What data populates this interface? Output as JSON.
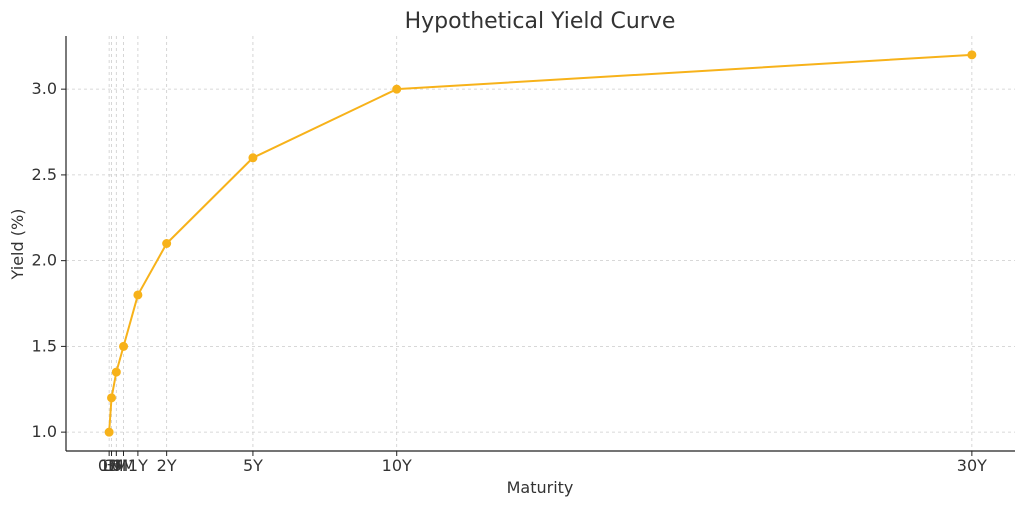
{
  "chart_data": {
    "type": "line",
    "title": "Hypothetical Yield Curve",
    "xlabel": "Maturity",
    "ylabel": "Yield (%)",
    "grid": true,
    "color": "#f7b21a",
    "x": [
      0,
      0.083,
      0.25,
      0.5,
      1,
      2,
      5,
      10,
      30
    ],
    "x_tick_labels": [
      "0D",
      "1M",
      "3M",
      "6M",
      "1Y",
      "2Y",
      "5Y",
      "10Y",
      "30Y"
    ],
    "series": [
      {
        "values": [
          1.0,
          1.2,
          1.35,
          1.5,
          1.8,
          2.1,
          2.6,
          3.0,
          3.2
        ]
      }
    ],
    "y_ticks": [
      1.0,
      1.5,
      2.0,
      2.5,
      3.0
    ],
    "y_tick_labels": [
      "1.0",
      "1.5",
      "2.0",
      "2.5",
      "3.0"
    ],
    "xlim": [
      -1.5,
      31.5
    ],
    "ylim": [
      0.89,
      3.31
    ]
  }
}
